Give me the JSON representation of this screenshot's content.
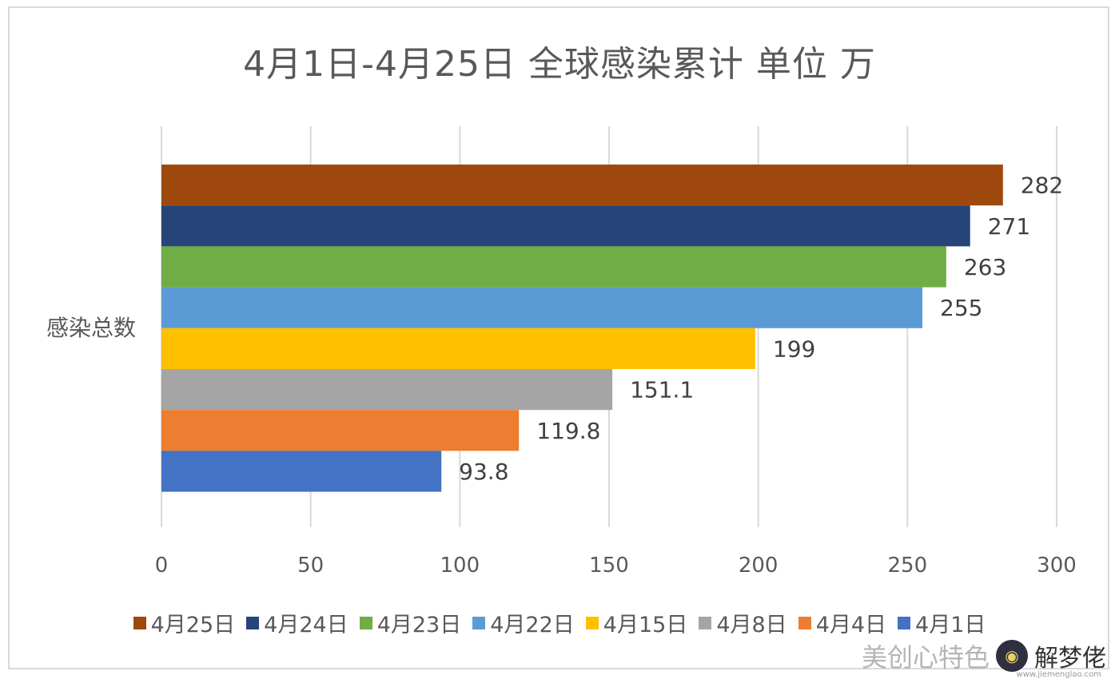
{
  "chart_data": {
    "type": "bar",
    "orientation": "horizontal",
    "title": "4月1日-4月25日 全球感染累计 单位 万",
    "categories": [
      "感染总数"
    ],
    "series": [
      {
        "name": "4月25日",
        "values": [
          282
        ],
        "color": "#9e480e"
      },
      {
        "name": "4月24日",
        "values": [
          271
        ],
        "color": "#264478"
      },
      {
        "name": "4月23日",
        "values": [
          263
        ],
        "color": "#70ad47"
      },
      {
        "name": "4月22日",
        "values": [
          255
        ],
        "color": "#5b9bd5"
      },
      {
        "name": "4月15日",
        "values": [
          199
        ],
        "color": "#ffc000"
      },
      {
        "name": "4月8日",
        "values": [
          151.1
        ],
        "color": "#a5a5a5"
      },
      {
        "name": "4月4日",
        "values": [
          119.8
        ],
        "color": "#ed7d31"
      },
      {
        "name": "4月1日",
        "values": [
          93.8
        ],
        "color": "#4472c4"
      }
    ],
    "data_labels": [
      "282",
      "271",
      "263",
      "255",
      "199",
      "151.1",
      "119.8",
      "93.8"
    ],
    "xlim": [
      0,
      300
    ],
    "x_ticks": [
      "0",
      "50",
      "100",
      "150",
      "200",
      "250",
      "300"
    ],
    "grid": true,
    "legend_position": "bottom"
  },
  "watermark": {
    "text": "美创心特色",
    "name": "解梦佬",
    "url": "www.jiemenglao.com"
  }
}
